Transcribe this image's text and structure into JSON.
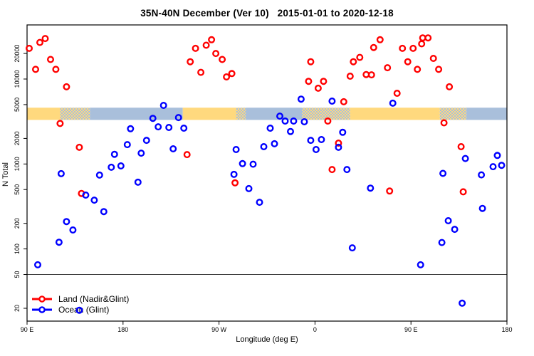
{
  "page": {
    "background": "#FFFFFF"
  },
  "colors": {
    "land": "#FF0000",
    "ocean": "#0000FF",
    "band_land": "#FFD97E",
    "band_ocean": "#A9BFDB",
    "axis": "#000000",
    "ref_line": "#3A3A3A"
  },
  "chart_data": {
    "type": "scatter",
    "title": "35N-40N December (Ver 10)   2015-01-01 to 2020-12-18",
    "xlabel": "Longitude (deg E)",
    "ylabel": "N Total",
    "x_axis": {
      "range": [
        90,
        540
      ],
      "note": "longitude axis wraps eastward: 90E to 180 to 90W to 0 to 90E to 180",
      "ticks": [
        {
          "value": 90,
          "label": "90 E"
        },
        {
          "value": 180,
          "label": "180"
        },
        {
          "value": 270,
          "label": "90 W"
        },
        {
          "value": 360,
          "label": "0"
        },
        {
          "value": 450,
          "label": "90 E"
        },
        {
          "value": 540,
          "label": "180"
        }
      ]
    },
    "y_axis": {
      "scale": "log",
      "range": [
        14,
        43000
      ],
      "ticks": [
        {
          "value": 20,
          "label": "20"
        },
        {
          "value": 50,
          "label": "50"
        },
        {
          "value": 100,
          "label": "100"
        },
        {
          "value": 200,
          "label": "200"
        },
        {
          "value": 500,
          "label": "500"
        },
        {
          "value": 1000,
          "label": "1000"
        },
        {
          "value": 2000,
          "label": "2000"
        },
        {
          "value": 5000,
          "label": "5000"
        },
        {
          "value": 10000,
          "label": "10000"
        },
        {
          "value": 20000,
          "label": "20000"
        }
      ]
    },
    "reference_line": {
      "value": 50
    },
    "surface_band": {
      "value_range": [
        3300,
        4600
      ],
      "meaning": "surface type (land=orange / ocean=blue) along longitude for 35N-40N",
      "segments": [
        {
          "from": 90,
          "to": 121,
          "type": "land"
        },
        {
          "from": 121,
          "to": 149,
          "type": "mixed"
        },
        {
          "from": 149,
          "to": 236,
          "type": "ocean"
        },
        {
          "from": 236,
          "to": 286,
          "type": "land"
        },
        {
          "from": 286,
          "to": 295,
          "type": "mixed"
        },
        {
          "from": 295,
          "to": 348,
          "type": "ocean"
        },
        {
          "from": 348,
          "to": 393,
          "type": "mixed"
        },
        {
          "from": 393,
          "to": 477,
          "type": "land"
        },
        {
          "from": 477,
          "to": 502,
          "type": "mixed"
        },
        {
          "from": 502,
          "to": 540,
          "type": "ocean"
        }
      ]
    },
    "legend": {
      "position": "bottom-left"
    },
    "series": [
      {
        "name": "Land (Nadir&Glint)",
        "color": "#FF0000",
        "marker": "open-circle",
        "points": [
          [
            92,
            23000
          ],
          [
            102,
            27000
          ],
          [
            107,
            30000
          ],
          [
            112,
            17000
          ],
          [
            98,
            13000
          ],
          [
            117,
            13000
          ],
          [
            127,
            8100
          ],
          [
            121,
            3000
          ],
          [
            139,
            1570
          ],
          [
            141,
            450
          ],
          [
            248,
            23000
          ],
          [
            258,
            25000
          ],
          [
            263,
            29000
          ],
          [
            267,
            20000
          ],
          [
            273,
            17000
          ],
          [
            243,
            16000
          ],
          [
            253,
            12000
          ],
          [
            277,
            10600
          ],
          [
            282,
            11600
          ],
          [
            240,
            1290
          ],
          [
            285,
            600
          ],
          [
            356,
            16000
          ],
          [
            354,
            9400
          ],
          [
            368,
            9400
          ],
          [
            363,
            7800
          ],
          [
            396,
            16000
          ],
          [
            402,
            18000
          ],
          [
            415,
            23500
          ],
          [
            421,
            29000
          ],
          [
            393,
            10800
          ],
          [
            408,
            11300
          ],
          [
            413,
            11200
          ],
          [
            428,
            13600
          ],
          [
            387,
            5400
          ],
          [
            372,
            3200
          ],
          [
            382,
            1760
          ],
          [
            376,
            860
          ],
          [
            430,
            480
          ],
          [
            461,
            30500
          ],
          [
            466,
            30500
          ],
          [
            460,
            26000
          ],
          [
            442,
            23000
          ],
          [
            452,
            23000
          ],
          [
            447,
            16000
          ],
          [
            471,
            17500
          ],
          [
            456,
            13000
          ],
          [
            476,
            13000
          ],
          [
            486,
            8100
          ],
          [
            437,
            6800
          ],
          [
            481,
            3050
          ],
          [
            497,
            1600
          ],
          [
            499,
            470
          ]
        ]
      },
      {
        "name": "Ocean (Glint)",
        "color": "#0000FF",
        "marker": "open-circle",
        "points": [
          [
            208,
            3450
          ],
          [
            187,
            2600
          ],
          [
            202,
            1900
          ],
          [
            184,
            1690
          ],
          [
            197,
            1340
          ],
          [
            172,
            1300
          ],
          [
            169,
            915
          ],
          [
            178,
            950
          ],
          [
            122,
            770
          ],
          [
            158,
            740
          ],
          [
            194,
            610
          ],
          [
            145,
            430
          ],
          [
            153,
            375
          ],
          [
            162,
            275
          ],
          [
            127,
            210
          ],
          [
            133,
            167
          ],
          [
            120,
            120
          ],
          [
            100,
            65
          ],
          [
            139,
            19
          ],
          [
            218,
            4900
          ],
          [
            232,
            3520
          ],
          [
            213,
            2740
          ],
          [
            223,
            2690
          ],
          [
            237,
            2640
          ],
          [
            318,
            2640
          ],
          [
            312,
            1600
          ],
          [
            227,
            1510
          ],
          [
            286,
            1480
          ],
          [
            292,
            1010
          ],
          [
            302,
            995
          ],
          [
            284,
            755
          ],
          [
            298,
            513
          ],
          [
            308,
            354
          ],
          [
            347,
            5800
          ],
          [
            376,
            5500
          ],
          [
            327,
            3660
          ],
          [
            332,
            3200
          ],
          [
            340,
            3200
          ],
          [
            350,
            3140
          ],
          [
            337,
            2410
          ],
          [
            322,
            1730
          ],
          [
            356,
            1900
          ],
          [
            366,
            1940
          ],
          [
            386,
            2360
          ],
          [
            361,
            1480
          ],
          [
            382,
            1570
          ],
          [
            390,
            860
          ],
          [
            412,
            520
          ],
          [
            395,
            103
          ],
          [
            433,
            5200
          ],
          [
            501,
            1160
          ],
          [
            531,
            1260
          ],
          [
            527,
            930
          ],
          [
            535,
            965
          ],
          [
            480,
            775
          ],
          [
            516,
            745
          ],
          [
            517,
            300
          ],
          [
            485,
            215
          ],
          [
            491,
            170
          ],
          [
            479,
            119
          ],
          [
            459,
            65
          ],
          [
            498,
            23
          ]
        ]
      }
    ]
  }
}
